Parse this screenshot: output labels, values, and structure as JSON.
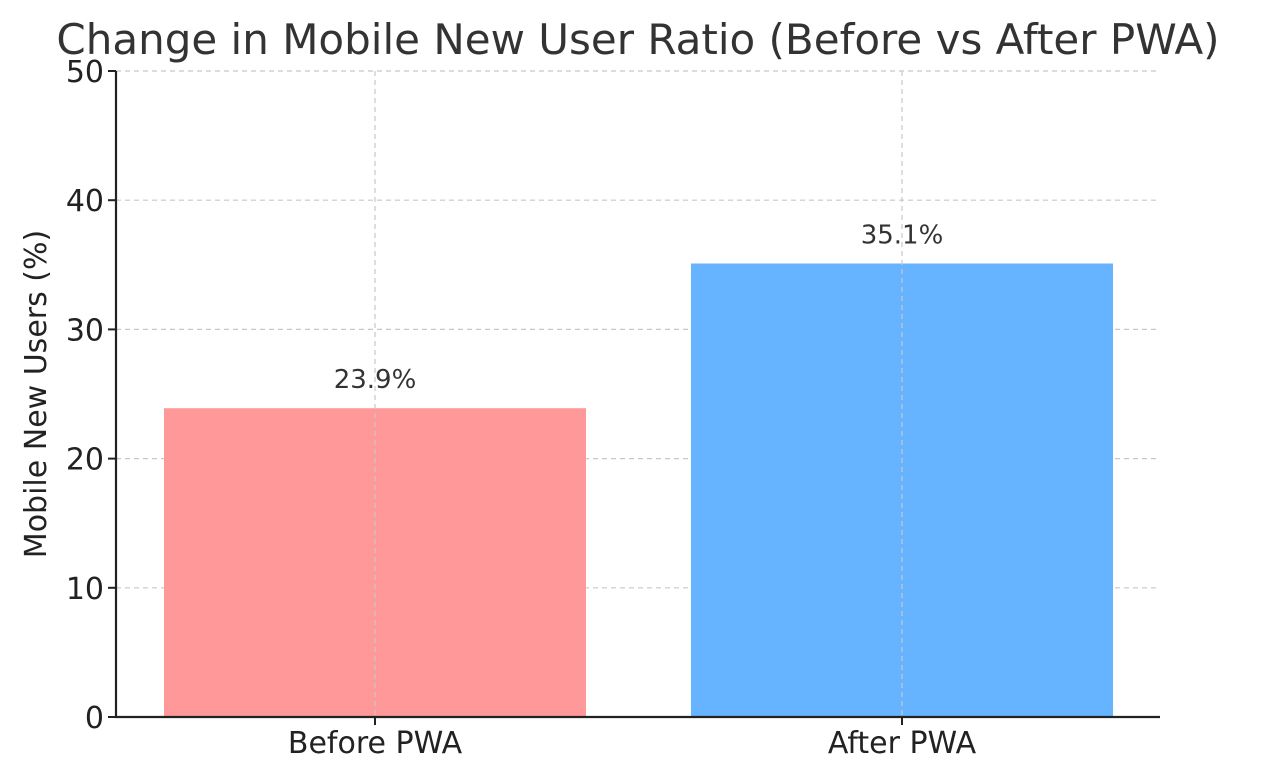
{
  "chart_data": {
    "type": "bar",
    "title": "Change in Mobile New User Ratio (Before vs After PWA)",
    "xlabel": "",
    "ylabel": "Mobile New Users (%)",
    "categories": [
      "Before PWA",
      "After PWA"
    ],
    "values": [
      23.9,
      35.1
    ],
    "data_labels": [
      "23.9%",
      "35.1%"
    ],
    "colors": [
      "#ff9999",
      "#66b3ff"
    ],
    "ylim": [
      0,
      50
    ],
    "yticks": [
      0,
      10,
      20,
      30,
      40,
      50
    ],
    "grid": true,
    "legend": "none"
  }
}
